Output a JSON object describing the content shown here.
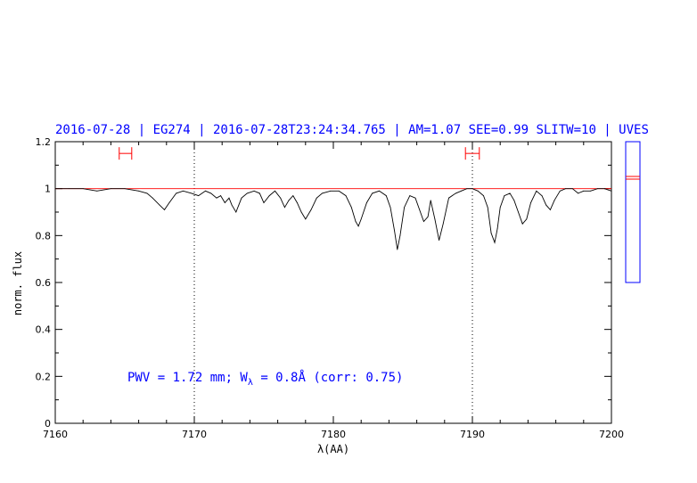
{
  "chart_data": {
    "type": "line",
    "title": "2016-07-28 | EG274 | 2016-07-28T23:24:34.765 | AM=1.07 SEE=0.99 SLITW=10 | UVES",
    "xlabel": "λ(AA)",
    "ylabel": "norm. flux",
    "xlim": [
      7160,
      7200
    ],
    "ylim": [
      0,
      1.2
    ],
    "xticks": [
      7160,
      7170,
      7180,
      7190,
      7200
    ],
    "xtick_labels": [
      "7160",
      "7170",
      "7180",
      "7190",
      "7200"
    ],
    "yticks": [
      0,
      0.2,
      0.4,
      0.6,
      0.8,
      1,
      1.2
    ],
    "ytick_labels": [
      "0",
      "0.2",
      "0.4",
      "0.6",
      "0.8",
      "1",
      "1.2"
    ],
    "annotation": {
      "prefix": "PWV = 1.72 mm; W",
      "subscript": "λ",
      "suffix": " = 0.8Å (corr: 0.75)"
    },
    "reference_lines_x": [
      7170,
      7190
    ],
    "continuum_level": 1.0,
    "continuum_windows": [
      {
        "x_min": 7164.6,
        "x_max": 7165.5,
        "y": 1.15
      },
      {
        "x_min": 7189.5,
        "x_max": 7190.5,
        "y": 1.15
      }
    ],
    "series": [
      {
        "color": "#000000",
        "x": [
          7160,
          7161,
          7162,
          7163,
          7164,
          7165,
          7166,
          7166.6,
          7167,
          7167.5,
          7167.85,
          7168.2,
          7168.7,
          7169.2,
          7169.8,
          7170.3,
          7170.8,
          7171.2,
          7171.6,
          7171.9,
          7172.2,
          7172.5,
          7172.7,
          7173.0,
          7173.2,
          7173.4,
          7173.8,
          7174.3,
          7174.7,
          7175.0,
          7175.4,
          7175.8,
          7176.2,
          7176.5,
          7176.8,
          7177.1,
          7177.4,
          7177.7,
          7178.0,
          7178.4,
          7178.8,
          7179.2,
          7179.8,
          7180.4,
          7180.9,
          7181.3,
          7181.6,
          7181.8,
          7182.0,
          7182.4,
          7182.8,
          7183.3,
          7183.8,
          7184.1,
          7184.4,
          7184.6,
          7184.8,
          7185.1,
          7185.5,
          7185.9,
          7186.2,
          7186.5,
          7186.8,
          7187.0,
          7187.3,
          7187.6,
          7187.9,
          7188.3,
          7188.8,
          7189.2,
          7189.6,
          7190.0,
          7190.4,
          7190.8,
          7191.1,
          7191.35,
          7191.6,
          7191.8,
          7192.0,
          7192.3,
          7192.7,
          7193.0,
          7193.3,
          7193.6,
          7193.9,
          7194.2,
          7194.6,
          7195.0,
          7195.3,
          7195.6,
          7195.9,
          7196.3,
          7196.7,
          7197.2,
          7197.6,
          7198.0,
          7198.5,
          7199.0,
          7199.5,
          7200
        ],
        "y": [
          1.0,
          1.0,
          1.0,
          0.99,
          1.0,
          1.0,
          0.99,
          0.98,
          0.96,
          0.93,
          0.91,
          0.94,
          0.98,
          0.99,
          0.98,
          0.97,
          0.99,
          0.98,
          0.96,
          0.97,
          0.94,
          0.96,
          0.93,
          0.9,
          0.93,
          0.96,
          0.98,
          0.99,
          0.98,
          0.94,
          0.97,
          0.99,
          0.96,
          0.92,
          0.95,
          0.97,
          0.94,
          0.9,
          0.87,
          0.91,
          0.96,
          0.98,
          0.99,
          0.99,
          0.97,
          0.92,
          0.86,
          0.84,
          0.87,
          0.94,
          0.98,
          0.99,
          0.97,
          0.92,
          0.82,
          0.74,
          0.8,
          0.92,
          0.97,
          0.96,
          0.91,
          0.86,
          0.88,
          0.95,
          0.87,
          0.78,
          0.85,
          0.96,
          0.98,
          0.99,
          1.0,
          1.0,
          0.99,
          0.97,
          0.92,
          0.81,
          0.77,
          0.83,
          0.92,
          0.97,
          0.98,
          0.95,
          0.9,
          0.85,
          0.87,
          0.94,
          0.99,
          0.97,
          0.93,
          0.91,
          0.95,
          0.99,
          1.0,
          1.0,
          0.98,
          0.99,
          0.99,
          1.0,
          1.0,
          0.99
        ]
      }
    ]
  }
}
